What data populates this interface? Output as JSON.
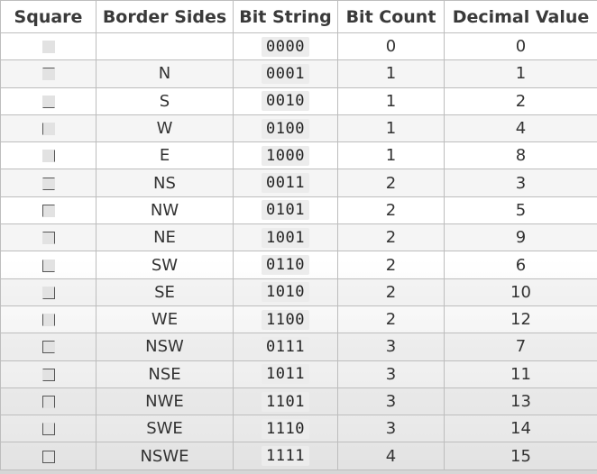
{
  "headers": [
    "Square",
    "Border Sides",
    "Bit String",
    "Bit Count",
    "Decimal Value"
  ],
  "rows": [
    {
      "sides": "",
      "bits": "0000",
      "count": "0",
      "decimal": "0"
    },
    {
      "sides": "N",
      "bits": "0001",
      "count": "1",
      "decimal": "1"
    },
    {
      "sides": "S",
      "bits": "0010",
      "count": "1",
      "decimal": "2"
    },
    {
      "sides": "W",
      "bits": "0100",
      "count": "1",
      "decimal": "4"
    },
    {
      "sides": "E",
      "bits": "1000",
      "count": "1",
      "decimal": "8"
    },
    {
      "sides": "NS",
      "bits": "0011",
      "count": "2",
      "decimal": "3"
    },
    {
      "sides": "NW",
      "bits": "0101",
      "count": "2",
      "decimal": "5"
    },
    {
      "sides": "NE",
      "bits": "1001",
      "count": "2",
      "decimal": "9"
    },
    {
      "sides": "SW",
      "bits": "0110",
      "count": "2",
      "decimal": "6"
    },
    {
      "sides": "SE",
      "bits": "1010",
      "count": "2",
      "decimal": "10"
    },
    {
      "sides": "WE",
      "bits": "1100",
      "count": "2",
      "decimal": "12"
    },
    {
      "sides": "NSW",
      "bits": "0111",
      "count": "3",
      "decimal": "7"
    },
    {
      "sides": "NSE",
      "bits": "1011",
      "count": "3",
      "decimal": "11"
    },
    {
      "sides": "NWE",
      "bits": "1101",
      "count": "3",
      "decimal": "13"
    },
    {
      "sides": "SWE",
      "bits": "1110",
      "count": "3",
      "decimal": "14"
    },
    {
      "sides": "NSWE",
      "bits": "1111",
      "count": "4",
      "decimal": "15"
    }
  ]
}
